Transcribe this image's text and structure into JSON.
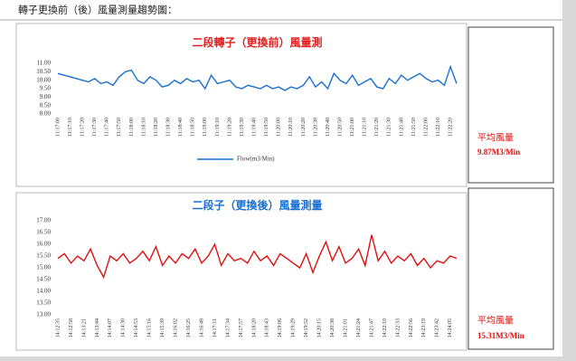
{
  "heading": "轉子更換前（後）風量測量趨勢圖：",
  "chart_data": [
    {
      "type": "line",
      "title": "二段轉子（更換前）風量測",
      "categories": [
        "11:17:00",
        null,
        "11:17:10",
        null,
        "11:17:20",
        null,
        "11:17:30",
        null,
        "11:17:40",
        null,
        "11:17:50",
        null,
        "11:18:00",
        null,
        "11:18:10",
        null,
        "11:18:20",
        null,
        "11:18:30",
        null,
        "11:18:40",
        null,
        "11:18:50",
        null,
        "11:19:00",
        null,
        "11:19:10",
        null,
        "11:19:20",
        null,
        "11:19:30",
        null,
        "11:19:40",
        null,
        "11:19:50",
        null,
        "11:20:00",
        null,
        "11:20:10",
        null,
        "11:20:20",
        null,
        "11:20:30",
        null,
        "11:20:40",
        null,
        "11:20:50",
        null,
        "11:21:00",
        null,
        "11:21:10",
        null,
        "11:21:20",
        null,
        "11:21:30",
        null,
        "11:21:40",
        null,
        "11:21:50",
        null,
        "11:22:00",
        null,
        "11:22:10",
        null,
        "11:22:20",
        null
      ],
      "series": [
        {
          "name": "Flow(m3/Min)",
          "color": "#1a6fd0",
          "values": [
            10.4,
            10.3,
            10.2,
            10.1,
            10.0,
            9.9,
            10.1,
            9.8,
            9.9,
            9.7,
            10.2,
            10.5,
            10.6,
            10.0,
            9.8,
            10.2,
            10.0,
            9.6,
            9.7,
            10.0,
            9.8,
            10.1,
            9.9,
            10.0,
            9.5,
            10.3,
            9.8,
            9.9,
            10.0,
            9.6,
            9.5,
            9.7,
            9.6,
            9.5,
            9.7,
            9.5,
            9.6,
            9.4,
            9.6,
            9.5,
            9.7,
            10.2,
            9.6,
            9.9,
            9.5,
            10.4,
            10.0,
            9.8,
            10.3,
            9.7,
            9.9,
            10.1,
            9.6,
            9.5,
            10.1,
            9.8,
            10.3,
            10.0,
            10.2,
            10.4,
            10.1,
            9.9,
            10.0,
            9.7,
            10.8,
            9.8
          ]
        }
      ],
      "ylim": [
        8,
        11
      ],
      "yticks": [
        {
          "value": 11,
          "label": "11.00"
        },
        {
          "value": 10.5,
          "label": "10.50"
        },
        {
          "value": 10,
          "label": "10.00"
        },
        {
          "value": 9.5,
          "label": "9.50"
        },
        {
          "value": 9,
          "label": "9.00"
        },
        {
          "value": 8.5,
          "label": "8.50"
        },
        {
          "value": 8,
          "label": "8.00"
        }
      ],
      "legend": "bottom",
      "title_color": "#e02020"
    },
    {
      "type": "line",
      "title": "二段子（更換後）風量測量",
      "categories": [
        "14:12:35",
        null,
        "14:12:58",
        null,
        "14:13:21",
        null,
        "14:13:44",
        null,
        "14:14:07",
        null,
        "14:14:30",
        null,
        "14:14:53",
        null,
        "14:15:16",
        null,
        "14:15:39",
        null,
        "14:16:02",
        null,
        "14:16:25",
        null,
        "14:16:48",
        null,
        "14:17:11",
        null,
        "14:17:34",
        null,
        "14:17:57",
        null,
        "14:18:20",
        null,
        "14:18:43",
        null,
        "14:19:06",
        null,
        "14:19:29",
        null,
        "14:19:52",
        null,
        "14:20:15",
        null,
        "14:20:38",
        null,
        "14:21:01",
        null,
        "14:21:24",
        null,
        "14:21:47",
        null,
        "14:22:10",
        null,
        "14:22:33",
        null,
        "14:22:56",
        null,
        "14:23:19",
        null,
        "14:23:42",
        null,
        "14:24:05",
        null
      ],
      "series": [
        {
          "color": "#e01010",
          "values": [
            15.4,
            15.6,
            15.2,
            15.5,
            15.3,
            15.8,
            15.1,
            14.6,
            15.5,
            15.3,
            15.6,
            15.2,
            15.4,
            15.7,
            15.3,
            15.9,
            15.1,
            15.5,
            15.2,
            15.6,
            15.4,
            15.8,
            15.2,
            15.5,
            16.0,
            15.1,
            15.6,
            15.3,
            15.4,
            15.2,
            15.7,
            15.3,
            15.5,
            15.1,
            15.6,
            15.4,
            15.2,
            15.0,
            15.6,
            14.8,
            15.5,
            16.1,
            15.3,
            15.9,
            15.2,
            15.4,
            15.8,
            15.1,
            16.4,
            15.3,
            15.7,
            15.2,
            15.5,
            15.3,
            15.6,
            15.1,
            15.4,
            15.0,
            15.3,
            15.2,
            15.5,
            15.4
          ]
        }
      ],
      "ylim": [
        13,
        17
      ],
      "yticks": [
        {
          "value": 17,
          "label": "17.00"
        },
        {
          "value": 16.5,
          "label": "16.50"
        },
        {
          "value": 16,
          "label": "16.00"
        },
        {
          "value": 15.5,
          "label": "15.50"
        },
        {
          "value": 15,
          "label": "15.00"
        },
        {
          "value": 14.5,
          "label": "14.50"
        },
        {
          "value": 14,
          "label": "14.00"
        },
        {
          "value": 13.5,
          "label": "13.50"
        },
        {
          "value": 13,
          "label": "13.00"
        }
      ],
      "title_color": "#1a6fd0"
    }
  ],
  "side_notes": [
    {
      "label": "平均風量",
      "value": "9.87M3/Min"
    },
    {
      "label": "平均風量",
      "value": "15.31M3/Min"
    }
  ]
}
